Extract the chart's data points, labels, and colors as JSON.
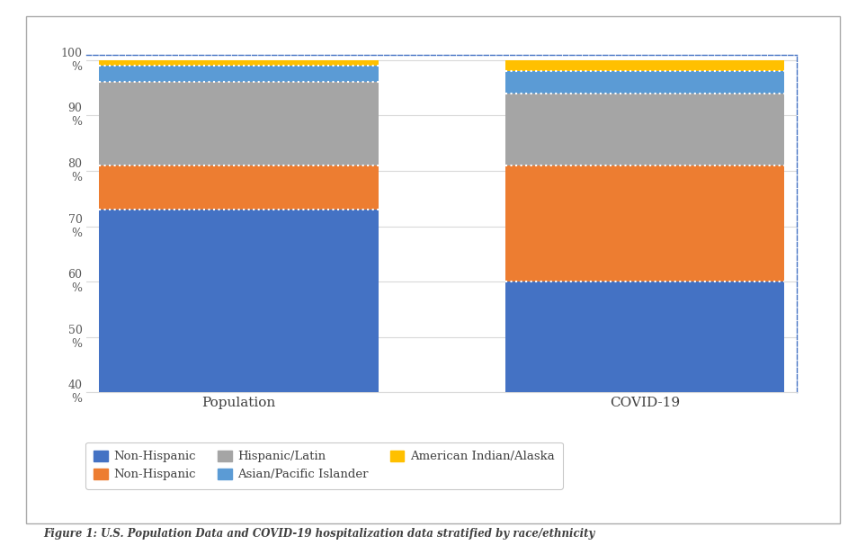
{
  "categories": [
    "Population",
    "COVID-19"
  ],
  "segments": [
    {
      "label": "Non-Hispanic",
      "color": "#4472C4",
      "values": [
        73,
        60
      ]
    },
    {
      "label": "Non-Hispanic",
      "color": "#ED7D31",
      "values": [
        8,
        21
      ]
    },
    {
      "label": "Hispanic/Latin",
      "color": "#A5A5A5",
      "values": [
        15,
        13
      ]
    },
    {
      "label": "Asian/Pacific Islander",
      "color": "#5B9BD5",
      "values": [
        3,
        4
      ]
    },
    {
      "label": "American Indian/Alaska",
      "color": "#FFC000",
      "values": [
        1,
        2
      ]
    }
  ],
  "ylim": [
    40,
    101
  ],
  "yticks": [
    40,
    50,
    60,
    70,
    80,
    90,
    100
  ],
  "bar_width": 0.55,
  "x_positions": [
    0.3,
    1.1
  ],
  "figure_caption": "Figure 1: U.S. Population Data and COVID-19 hospitalization data stratified by race/ethnicity",
  "background_color": "#FFFFFF",
  "plot_bg_color": "#FFFFFF",
  "grid_color": "#D9D9D9",
  "border_color_dashed": "#4472C4",
  "text_color": "#404040",
  "tick_label_color": "#595959"
}
